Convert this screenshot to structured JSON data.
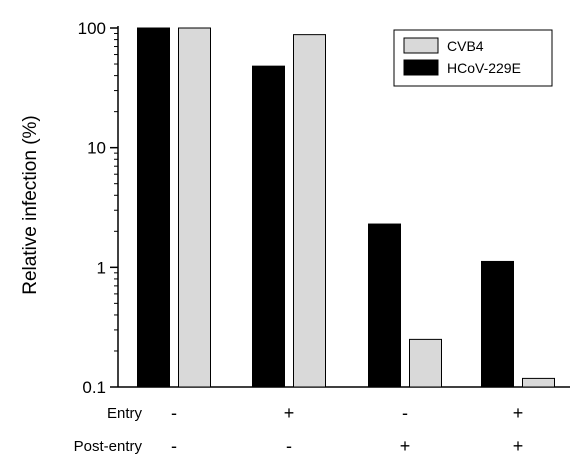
{
  "chart_data": {
    "type": "bar",
    "ylabel": "Relative infection (%)",
    "yscale": "log",
    "ylim": [
      0.1,
      100
    ],
    "yticks": [
      {
        "value": 0.1,
        "label": "0.1"
      },
      {
        "value": 1,
        "label": "1"
      },
      {
        "value": 10,
        "label": "10"
      },
      {
        "value": 100,
        "label": "100"
      }
    ],
    "grid": false,
    "legend_position": "top-right",
    "conditions": [
      {
        "name": "Entry",
        "signs": [
          "-",
          "+",
          "-",
          "+"
        ]
      },
      {
        "name": "Post-entry",
        "signs": [
          "-",
          "-",
          "+",
          "+"
        ]
      }
    ],
    "series": [
      {
        "name": "HCoV-229E",
        "color": "#000000",
        "values": [
          100,
          48,
          2.3,
          1.12
        ]
      },
      {
        "name": "CVB4",
        "color": "#d9d9d9",
        "values": [
          100,
          88,
          0.25,
          0.118
        ]
      }
    ],
    "legend_order": [
      "CVB4",
      "HCoV-229E"
    ]
  }
}
